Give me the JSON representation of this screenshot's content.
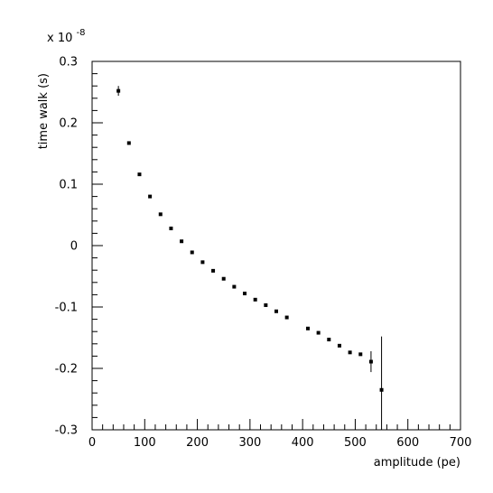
{
  "chart_data": {
    "type": "scatter",
    "title": "",
    "xlabel": "amplitude (pe)",
    "ylabel": "time walk (s)",
    "y_multiplier_label": "x 10",
    "y_multiplier_exponent": "-8",
    "xlim": [
      0,
      700
    ],
    "ylim": [
      -0.3,
      0.3
    ],
    "x_ticks": [
      0,
      100,
      200,
      300,
      400,
      500,
      600,
      700
    ],
    "x_tick_labels": [
      "0",
      "100",
      "200",
      "300",
      "400",
      "500",
      "600",
      "700"
    ],
    "y_ticks": [
      -0.3,
      -0.2,
      -0.1,
      0,
      0.1,
      0.2,
      0.3
    ],
    "y_tick_labels": [
      "-0.3",
      "-0.2",
      "-0.1",
      "0",
      "0.1",
      "0.2",
      "0.3"
    ],
    "grid": false,
    "marker_color": "#000000",
    "series": [
      {
        "points": [
          {
            "x": 50,
            "y": 0.252,
            "err": 0.008
          },
          {
            "x": 70,
            "y": 0.167,
            "err": 0
          },
          {
            "x": 90,
            "y": 0.116,
            "err": 0
          },
          {
            "x": 110,
            "y": 0.08,
            "err": 0
          },
          {
            "x": 130,
            "y": 0.051,
            "err": 0
          },
          {
            "x": 150,
            "y": 0.028,
            "err": 0
          },
          {
            "x": 170,
            "y": 0.007,
            "err": 0
          },
          {
            "x": 190,
            "y": -0.011,
            "err": 0
          },
          {
            "x": 210,
            "y": -0.027,
            "err": 0
          },
          {
            "x": 230,
            "y": -0.041,
            "err": 0
          },
          {
            "x": 250,
            "y": -0.054,
            "err": 0
          },
          {
            "x": 270,
            "y": -0.067,
            "err": 0
          },
          {
            "x": 290,
            "y": -0.078,
            "err": 0
          },
          {
            "x": 310,
            "y": -0.088,
            "err": 0
          },
          {
            "x": 330,
            "y": -0.097,
            "err": 0
          },
          {
            "x": 350,
            "y": -0.107,
            "err": 0
          },
          {
            "x": 370,
            "y": -0.117,
            "err": 0
          },
          {
            "x": 410,
            "y": -0.135,
            "err": 0
          },
          {
            "x": 430,
            "y": -0.142,
            "err": 0
          },
          {
            "x": 450,
            "y": -0.153,
            "err": 0
          },
          {
            "x": 470,
            "y": -0.163,
            "err": 0
          },
          {
            "x": 490,
            "y": -0.174,
            "err": 0
          },
          {
            "x": 510,
            "y": -0.177,
            "err": 0
          },
          {
            "x": 530,
            "y": -0.189,
            "err": 0.017
          },
          {
            "x": 550,
            "y": -0.235,
            "err": 0.087
          }
        ]
      }
    ]
  }
}
